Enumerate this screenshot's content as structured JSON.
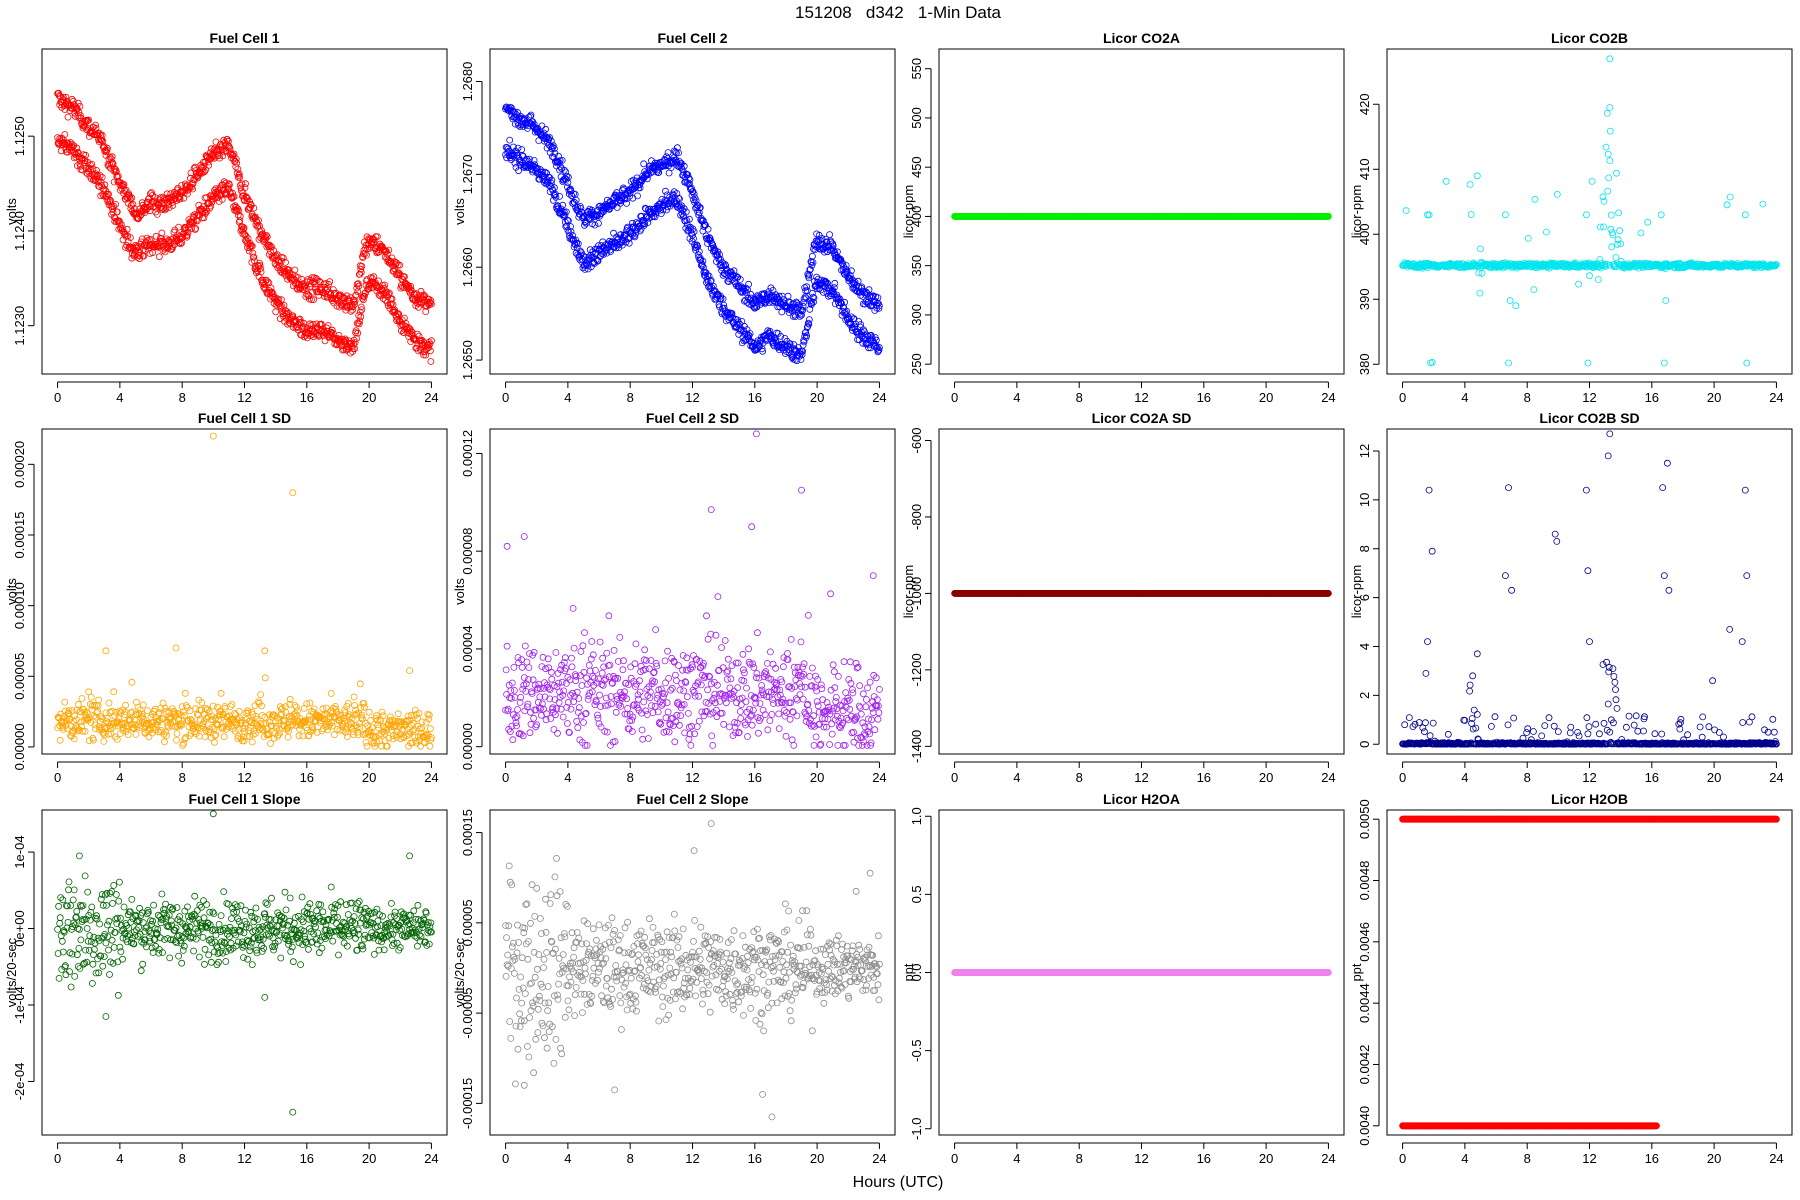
{
  "figure_title": "151208   d342   1-Min Data",
  "xlabel": "Hours (UTC)",
  "chart_data": [
    {
      "id": "fc1",
      "type": "scatter",
      "title": "Fuel Cell 1",
      "ylabel": "volts",
      "color": "#ff0000",
      "xlim": [
        -1,
        25
      ],
      "ylim": [
        1.12249,
        1.12592
      ],
      "xticks": [
        0,
        4,
        8,
        12,
        16,
        20,
        24
      ],
      "yticks": [
        1.123,
        1.124,
        1.125
      ],
      "ytick_labels": [
        "1.1230",
        "1.1240",
        "1.1250"
      ],
      "pattern": "fc",
      "base": [
        [
          0,
          1.1254
        ],
        [
          1,
          1.1253
        ],
        [
          2,
          1.1251
        ],
        [
          3,
          1.1249
        ],
        [
          4,
          1.1245
        ],
        [
          5,
          1.1242
        ],
        [
          6,
          1.1243
        ],
        [
          7,
          1.1243
        ],
        [
          8,
          1.1244
        ],
        [
          9,
          1.1246
        ],
        [
          10,
          1.1248
        ],
        [
          11,
          1.1249
        ],
        [
          12,
          1.1244
        ],
        [
          13,
          1.124
        ],
        [
          14,
          1.1237
        ],
        [
          15,
          1.1235
        ],
        [
          16,
          1.1234
        ],
        [
          17,
          1.1234
        ],
        [
          18,
          1.1233
        ],
        [
          19,
          1.1232
        ],
        [
          19.7,
          1.1238
        ],
        [
          20,
          1.1239
        ],
        [
          21,
          1.1238
        ],
        [
          22,
          1.1235
        ],
        [
          23,
          1.1233
        ],
        [
          24,
          1.1232
        ]
      ],
      "amp": 0.00045,
      "noise": 5e-05
    },
    {
      "id": "fc2",
      "type": "scatter",
      "title": "Fuel Cell 2",
      "ylabel": "volts",
      "color": "#0000ff",
      "xlim": [
        -1,
        25
      ],
      "ylim": [
        1.26485,
        1.26835
      ],
      "xticks": [
        0,
        4,
        8,
        12,
        16,
        20,
        24
      ],
      "yticks": [
        1.265,
        1.266,
        1.267,
        1.268
      ],
      "ytick_labels": [
        "1.2650",
        "1.2660",
        "1.2670",
        "1.2680"
      ],
      "pattern": "fc",
      "base": [
        [
          0,
          1.2677
        ],
        [
          1,
          1.2676
        ],
        [
          2,
          1.2675
        ],
        [
          3,
          1.2673
        ],
        [
          4,
          1.2669
        ],
        [
          5,
          1.2665
        ],
        [
          6,
          1.2666
        ],
        [
          7,
          1.2667
        ],
        [
          8,
          1.2668
        ],
        [
          9,
          1.267
        ],
        [
          10,
          1.2671
        ],
        [
          11,
          1.2672
        ],
        [
          12,
          1.2668
        ],
        [
          13,
          1.2663
        ],
        [
          14,
          1.266
        ],
        [
          15,
          1.2658
        ],
        [
          16,
          1.2656
        ],
        [
          17,
          1.2657
        ],
        [
          18,
          1.2656
        ],
        [
          19,
          1.2655
        ],
        [
          19.7,
          1.2661
        ],
        [
          20,
          1.2663
        ],
        [
          21,
          1.2662
        ],
        [
          22,
          1.2659
        ],
        [
          23,
          1.2657
        ],
        [
          24,
          1.2656
        ]
      ],
      "amp": 0.00045,
      "noise": 5e-05
    },
    {
      "id": "co2a",
      "type": "scatter",
      "title": "Licor CO2A",
      "ylabel": "licor-ppm",
      "color": "#00ee00",
      "xlim": [
        -1,
        25
      ],
      "ylim": [
        240,
        570
      ],
      "xticks": [
        0,
        4,
        8,
        12,
        16,
        20,
        24
      ],
      "yticks": [
        250,
        300,
        350,
        400,
        450,
        500,
        550
      ],
      "ytick_labels": [
        "250",
        "300",
        "350",
        "400",
        "450",
        "500",
        "550"
      ],
      "pattern": "const",
      "value": 400
    },
    {
      "id": "co2b",
      "type": "scatter",
      "title": "Licor CO2B",
      "ylabel": "licor-ppm",
      "color": "#00e5ee",
      "xlim": [
        -1,
        25
      ],
      "ylim": [
        378.5,
        428.5
      ],
      "xticks": [
        0,
        4,
        8,
        12,
        16,
        20,
        24
      ],
      "yticks": [
        380,
        390,
        400,
        410,
        420
      ],
      "ytick_labels": [
        "380",
        "390",
        "400",
        "410",
        "420"
      ],
      "pattern": "co2b",
      "base": 395.2,
      "spike_x": 13.3,
      "spike_max": 427
    },
    {
      "id": "fc1sd",
      "type": "scatter",
      "title": "Fuel Cell 1 SD",
      "ylabel": "volts",
      "color": "#ffa500",
      "xlim": [
        -1,
        25
      ],
      "ylim": [
        -5e-06,
        0.000225
      ],
      "xticks": [
        0,
        4,
        8,
        12,
        16,
        20,
        24
      ],
      "yticks": [
        0,
        5e-05,
        0.0001,
        0.00015,
        0.0002
      ],
      "ytick_labels": [
        "0.00000",
        "0.00005",
        "0.00010",
        "0.00015",
        "0.00020"
      ],
      "pattern": "sd",
      "mean": 1.8e-05,
      "spread": 1.2e-05,
      "outliers": [
        [
          10,
          0.00022
        ],
        [
          15.1,
          0.00018
        ],
        [
          13.3,
          6.8e-05
        ],
        [
          7.6,
          7e-05
        ],
        [
          3.1,
          6.8e-05
        ],
        [
          22.6,
          5.4e-05
        ]
      ]
    },
    {
      "id": "fc2sd",
      "type": "scatter",
      "title": "Fuel Cell 2 SD",
      "ylabel": "volts",
      "color": "#a020f0",
      "xlim": [
        -1,
        25
      ],
      "ylim": [
        -3e-06,
        0.00013
      ],
      "xticks": [
        0,
        4,
        8,
        12,
        16,
        20,
        24
      ],
      "yticks": [
        0,
        4e-05,
        8e-05,
        0.00012
      ],
      "ytick_labels": [
        "0.00000",
        "0.00004",
        "0.00008",
        "0.00012"
      ],
      "pattern": "sd",
      "mean": 2.2e-05,
      "spread": 1.8e-05,
      "outliers": [
        [
          16.1,
          0.000128
        ],
        [
          19,
          0.000105
        ],
        [
          13.2,
          9.7e-05
        ],
        [
          15.8,
          9e-05
        ],
        [
          0.1,
          8.2e-05
        ],
        [
          1.2,
          8.6e-05
        ],
        [
          23.6,
          7e-05
        ]
      ]
    },
    {
      "id": "co2asd",
      "type": "scatter",
      "title": "Licor CO2A SD",
      "ylabel": "licor-ppm",
      "color": "#8b0000",
      "xlim": [
        -1,
        25
      ],
      "ylim": [
        -1420,
        -570
      ],
      "xticks": [
        0,
        4,
        8,
        12,
        16,
        20,
        24
      ],
      "yticks": [
        -1400,
        -1200,
        -1000,
        -800,
        -600
      ],
      "ytick_labels": [
        "-1400",
        "-1200",
        "-1000",
        "-800",
        "-600"
      ],
      "pattern": "const",
      "value": -1000
    },
    {
      "id": "co2bsd",
      "type": "scatter",
      "title": "Licor CO2B SD",
      "ylabel": "licor-ppm",
      "color": "#00008b",
      "xlim": [
        -1,
        25
      ],
      "ylim": [
        -0.4,
        12.9
      ],
      "xticks": [
        0,
        4,
        8,
        12,
        16,
        20,
        24
      ],
      "yticks": [
        0,
        2,
        4,
        6,
        8,
        10,
        12
      ],
      "ytick_labels": [
        "0",
        "2",
        "4",
        "6",
        "8",
        "10",
        "12"
      ],
      "pattern": "sdspike",
      "outliers": [
        [
          1.7,
          10.4
        ],
        [
          1.9,
          7.9
        ],
        [
          1.6,
          4.2
        ],
        [
          6.8,
          10.5
        ],
        [
          7,
          6.3
        ],
        [
          6.6,
          6.9
        ],
        [
          9.8,
          8.6
        ],
        [
          9.9,
          8.3
        ],
        [
          11.8,
          10.4
        ],
        [
          11.9,
          7.1
        ],
        [
          13.3,
          12.7
        ],
        [
          13.2,
          11.8
        ],
        [
          16.7,
          10.5
        ],
        [
          17,
          11.5
        ],
        [
          16.8,
          6.9
        ],
        [
          17.1,
          6.3
        ],
        [
          21,
          4.7
        ],
        [
          22,
          10.4
        ],
        [
          22.1,
          6.9
        ],
        [
          21.8,
          4.2
        ],
        [
          4.5,
          2.8
        ],
        [
          4.8,
          3.7
        ],
        [
          1.5,
          2.9
        ],
        [
          19.9,
          2.6
        ],
        [
          12,
          4.2
        ]
      ]
    },
    {
      "id": "fc1slope",
      "type": "scatter",
      "title": "Fuel Cell 1 Slope",
      "ylabel": "volts/20-sec",
      "color": "#006400",
      "xlim": [
        -1,
        25
      ],
      "ylim": [
        -0.00027,
        0.000155
      ],
      "xticks": [
        0,
        4,
        8,
        12,
        16,
        20,
        24
      ],
      "yticks": [
        -0.0002,
        -0.0001,
        0,
        0.0001
      ],
      "ytick_labels": [
        "-2e-04",
        "-1e-04",
        "0e+00",
        "1e-04"
      ],
      "pattern": "slope",
      "spread": 2e-05,
      "outliers": [
        [
          10,
          0.00015
        ],
        [
          15.1,
          -0.00024
        ],
        [
          13.3,
          -9e-05
        ],
        [
          3.1,
          -0.000115
        ],
        [
          22.6,
          9.5e-05
        ],
        [
          1.4,
          9.5e-05
        ]
      ]
    },
    {
      "id": "fc2slope",
      "type": "scatter",
      "title": "Fuel Cell 2 Slope",
      "ylabel": "volts/20-sec",
      "color": "#8c8c8c",
      "xlim": [
        -1,
        25
      ],
      "ylim": [
        -0.000185,
        0.000175
      ],
      "xticks": [
        0,
        4,
        8,
        12,
        16,
        20,
        24
      ],
      "yticks": [
        -0.00015,
        -5e-05,
        5e-05,
        0.00015
      ],
      "ytick_labels": [
        "-0.00015",
        "-0.00005",
        "0.00005",
        "0.00015"
      ],
      "pattern": "slope",
      "spread": 2.6e-05,
      "outliers": [
        [
          13.2,
          0.00016
        ],
        [
          12.1,
          0.00013
        ],
        [
          1.2,
          -0.00013
        ],
        [
          7,
          -0.000135
        ],
        [
          16.5,
          -0.00014
        ],
        [
          17.1,
          -0.000165
        ],
        [
          23.4,
          0.000105
        ],
        [
          22.5,
          8.5e-05
        ]
      ]
    },
    {
      "id": "h2oa",
      "type": "scatter",
      "title": "Licor H2OA",
      "ylabel": "ppt",
      "color": "#ee82ee",
      "xlim": [
        -1,
        25
      ],
      "ylim": [
        -1.04,
        1.04
      ],
      "xticks": [
        0,
        4,
        8,
        12,
        16,
        20,
        24
      ],
      "yticks": [
        -1,
        -0.5,
        0,
        0.5,
        1
      ],
      "ytick_labels": [
        "-1.0",
        "-0.5",
        "0.0",
        "0.5",
        "1.0"
      ],
      "pattern": "const",
      "value": 0
    },
    {
      "id": "h2ob",
      "type": "scatter",
      "title": "Licor H2OB",
      "ylabel": "ppt",
      "color": "#ff0000",
      "xlim": [
        -1,
        25
      ],
      "ylim": [
        0.00397,
        0.00503
      ],
      "xticks": [
        0,
        4,
        8,
        12,
        16,
        20,
        24
      ],
      "yticks": [
        0.004,
        0.0042,
        0.0044,
        0.0046,
        0.0048,
        0.005
      ],
      "ytick_labels": [
        "0.0040",
        "0.0042",
        "0.0044",
        "0.0046",
        "0.0048",
        "0.0050"
      ],
      "pattern": "twolevel",
      "high": 0.005,
      "low": 0.004,
      "low_end": 16.3
    }
  ]
}
